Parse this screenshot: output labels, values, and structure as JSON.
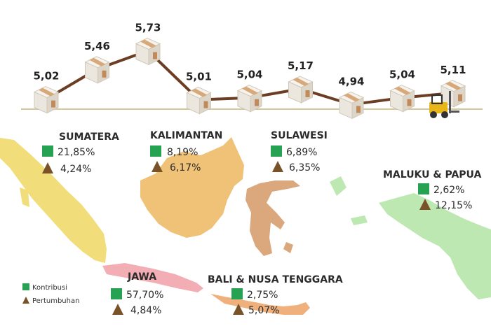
{
  "chart_data": {
    "type": "line",
    "values": [
      "5,02",
      "5,46",
      "5,73",
      "5,01",
      "5,04",
      "5,17",
      "4,94",
      "5,04",
      "5,11"
    ],
    "series": [
      {
        "values": [
          5.02,
          5.46,
          5.73,
          5.01,
          5.04,
          5.17,
          4.94,
          5.04,
          5.11
        ]
      }
    ],
    "ylim": [
      4.8,
      5.9
    ],
    "grid": false,
    "line_color": "#6b3e24",
    "marker": "box-icon",
    "axis_color": "#d4c79a"
  },
  "regions": [
    {
      "name": "SUMATERA",
      "kontribusi": "21,85%",
      "pertumbuhan": "4,24%",
      "color": "#f1dd7a"
    },
    {
      "name": "KALIMANTAN",
      "kontribusi": "8,19%",
      "pertumbuhan": "6,17%",
      "color": "#f0c277"
    },
    {
      "name": "SULAWESI",
      "kontribusi": "6,89%",
      "pertumbuhan": "6,35%",
      "color": "#dba77c"
    },
    {
      "name": "MALUKU & PAPUA",
      "kontribusi": "2,62%",
      "pertumbuhan": "12,15%",
      "color": "#bde8b2"
    },
    {
      "name": "JAWA",
      "kontribusi": "57,70%",
      "pertumbuhan": "4,84%",
      "color": "#f2aeb4"
    },
    {
      "name": "BALI & NUSA TENGGARA",
      "kontribusi": "2,75%",
      "pertumbuhan": "5,07%",
      "color": "#f0b07c"
    }
  ],
  "legend": {
    "kontribusi": "Kontribusi",
    "pertumbuhan": "Pertumbuhan"
  },
  "colors": {
    "kontribusi": "#27a252",
    "pertumbuhan": "#7a5227"
  }
}
